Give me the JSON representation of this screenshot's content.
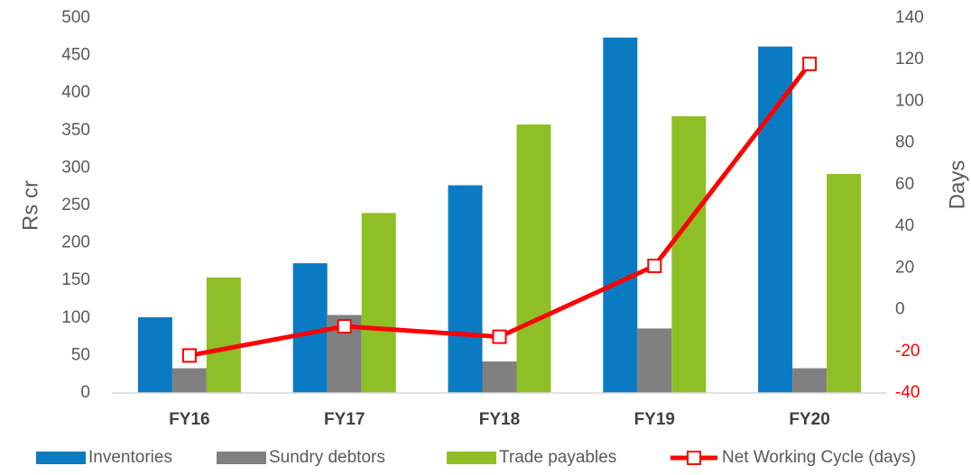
{
  "chart_data": {
    "type": "bar",
    "categories": [
      "FY16",
      "FY17",
      "FY18",
      "FY19",
      "FY20"
    ],
    "series": [
      {
        "name": "Inventories",
        "color": "#0a7bc2",
        "values": [
          101,
          173,
          277,
          474,
          462
        ]
      },
      {
        "name": "Sundry debtors",
        "color": "#808080",
        "values": [
          33,
          104,
          42,
          86,
          33
        ]
      },
      {
        "name": "Trade payables",
        "color": "#8fbf26",
        "values": [
          154,
          240,
          358,
          369,
          292
        ]
      },
      {
        "name": "Net Working Cycle (days)",
        "color": "#ff0000",
        "type": "line",
        "axis": "y2",
        "values": [
          -22,
          -8,
          -13,
          21,
          118
        ]
      }
    ],
    "ylabel": "Rs cr",
    "y2label": "Days",
    "ylim": [
      0,
      500
    ],
    "yticks": [
      0,
      50,
      100,
      150,
      200,
      250,
      300,
      350,
      400,
      450,
      500
    ],
    "y2lim": [
      -40,
      140
    ],
    "y2ticks": [
      -40,
      -20,
      0,
      20,
      40,
      60,
      80,
      100,
      120,
      140
    ],
    "y2_negative_tick_color": "#ff0000",
    "grid": false,
    "legend": "bottom"
  }
}
